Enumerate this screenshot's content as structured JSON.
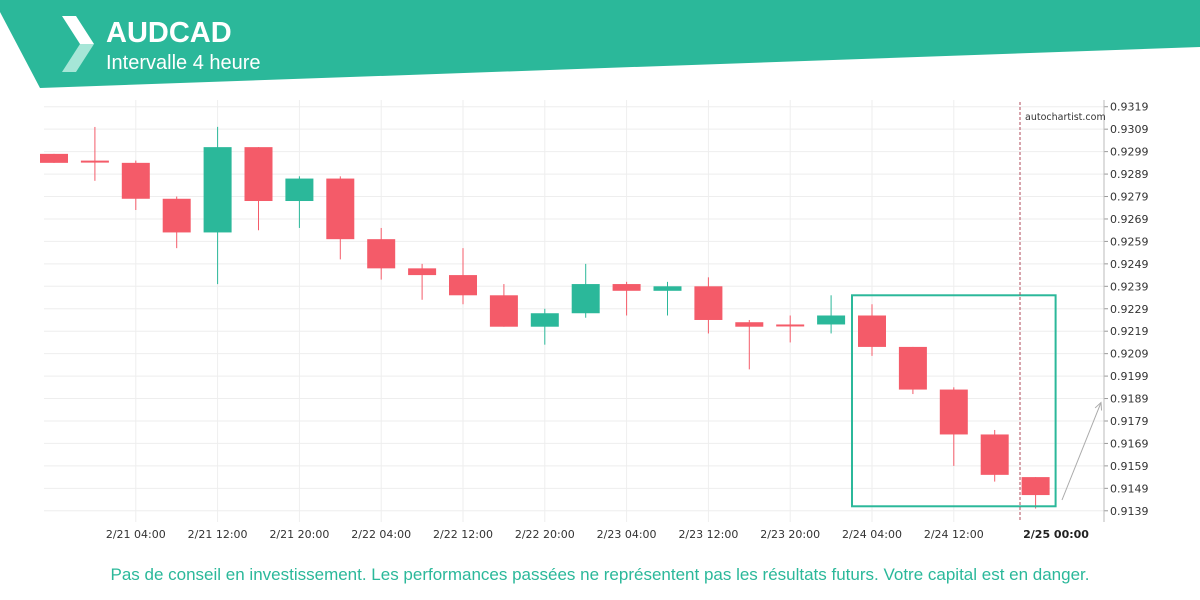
{
  "header": {
    "symbol": "AUDCAD",
    "interval": "Intervalle 4 heure",
    "colors": {
      "band": "#2bb89a",
      "band_light": "#6fd3bd"
    },
    "logo": "autochartist-logo-icon"
  },
  "watermark": "autochartist.com",
  "disclaimer": "Pas de conseil en investissement. Les performances passées ne représentent pas les résultats futurs. Votre capital est en danger.",
  "chart_data": {
    "type": "candlestick",
    "title": "",
    "xlabel": "",
    "ylabel": "",
    "grid": true,
    "colors": {
      "up": "#2bb89a",
      "down": "#f45b69",
      "pattern_box": "#2bb89a",
      "forecast_arrow": "#aaaaaa",
      "current_line": "#b0485a"
    },
    "ylim": [
      0.9134,
      0.9322
    ],
    "y_ticks": [
      0.9319,
      0.9309,
      0.9299,
      0.9289,
      0.9279,
      0.9269,
      0.9259,
      0.9249,
      0.9239,
      0.9229,
      0.9219,
      0.9209,
      0.9199,
      0.9189,
      0.9179,
      0.9169,
      0.9159,
      0.9149,
      0.9139
    ],
    "x_ticks": [
      {
        "label": "2/21 04:00",
        "index": 2
      },
      {
        "label": "2/21 12:00",
        "index": 4
      },
      {
        "label": "2/21 20:00",
        "index": 6
      },
      {
        "label": "2/22 04:00",
        "index": 8
      },
      {
        "label": "2/22 12:00",
        "index": 10
      },
      {
        "label": "2/22 20:00",
        "index": 12
      },
      {
        "label": "2/23 04:00",
        "index": 14
      },
      {
        "label": "2/23 12:00",
        "index": 16
      },
      {
        "label": "2/23 20:00",
        "index": 18
      },
      {
        "label": "2/24 04:00",
        "index": 20
      },
      {
        "label": "2/24 12:00",
        "index": 22
      },
      {
        "label": "2/25 00:00",
        "index": 24.5,
        "current": true
      }
    ],
    "candles": [
      {
        "o": 0.9298,
        "h": 0.9298,
        "l": 0.9294,
        "c": 0.9294
      },
      {
        "o": 0.9295,
        "h": 0.931,
        "l": 0.9286,
        "c": 0.9295
      },
      {
        "o": 0.9294,
        "h": 0.9295,
        "l": 0.9273,
        "c": 0.9278
      },
      {
        "o": 0.9278,
        "h": 0.9279,
        "l": 0.9256,
        "c": 0.9263
      },
      {
        "o": 0.9263,
        "h": 0.931,
        "l": 0.924,
        "c": 0.9301
      },
      {
        "o": 0.9301,
        "h": 0.9301,
        "l": 0.9264,
        "c": 0.9277
      },
      {
        "o": 0.9277,
        "h": 0.9288,
        "l": 0.9265,
        "c": 0.9287
      },
      {
        "o": 0.9287,
        "h": 0.9288,
        "l": 0.9251,
        "c": 0.926
      },
      {
        "o": 0.926,
        "h": 0.9265,
        "l": 0.9242,
        "c": 0.9247
      },
      {
        "o": 0.9247,
        "h": 0.9249,
        "l": 0.9233,
        "c": 0.9244
      },
      {
        "o": 0.9244,
        "h": 0.9256,
        "l": 0.9231,
        "c": 0.9235
      },
      {
        "o": 0.9235,
        "h": 0.924,
        "l": 0.9221,
        "c": 0.9221
      },
      {
        "o": 0.9221,
        "h": 0.9229,
        "l": 0.9213,
        "c": 0.9227
      },
      {
        "o": 0.9227,
        "h": 0.9249,
        "l": 0.9225,
        "c": 0.924
      },
      {
        "o": 0.924,
        "h": 0.9241,
        "l": 0.9226,
        "c": 0.9237
      },
      {
        "o": 0.9237,
        "h": 0.9241,
        "l": 0.9226,
        "c": 0.9239
      },
      {
        "o": 0.9239,
        "h": 0.9243,
        "l": 0.9218,
        "c": 0.9224
      },
      {
        "o": 0.9223,
        "h": 0.9224,
        "l": 0.9202,
        "c": 0.9221
      },
      {
        "o": 0.9222,
        "h": 0.9226,
        "l": 0.9214,
        "c": 0.9222
      },
      {
        "o": 0.9222,
        "h": 0.9235,
        "l": 0.9218,
        "c": 0.9226
      },
      {
        "o": 0.9226,
        "h": 0.9231,
        "l": 0.9208,
        "c": 0.9212
      },
      {
        "o": 0.9212,
        "h": 0.9212,
        "l": 0.9191,
        "c": 0.9193
      },
      {
        "o": 0.9193,
        "h": 0.9194,
        "l": 0.9159,
        "c": 0.9173
      },
      {
        "o": 0.9173,
        "h": 0.9175,
        "l": 0.9152,
        "c": 0.9155
      },
      {
        "o": 0.9154,
        "h": 0.9154,
        "l": 0.914,
        "c": 0.9146
      }
    ],
    "pattern_box": {
      "from_index": 20,
      "to_index": 24,
      "high": 0.9235,
      "low": 0.9141
    },
    "forecast_arrow": {
      "to_value": 0.9189
    }
  }
}
